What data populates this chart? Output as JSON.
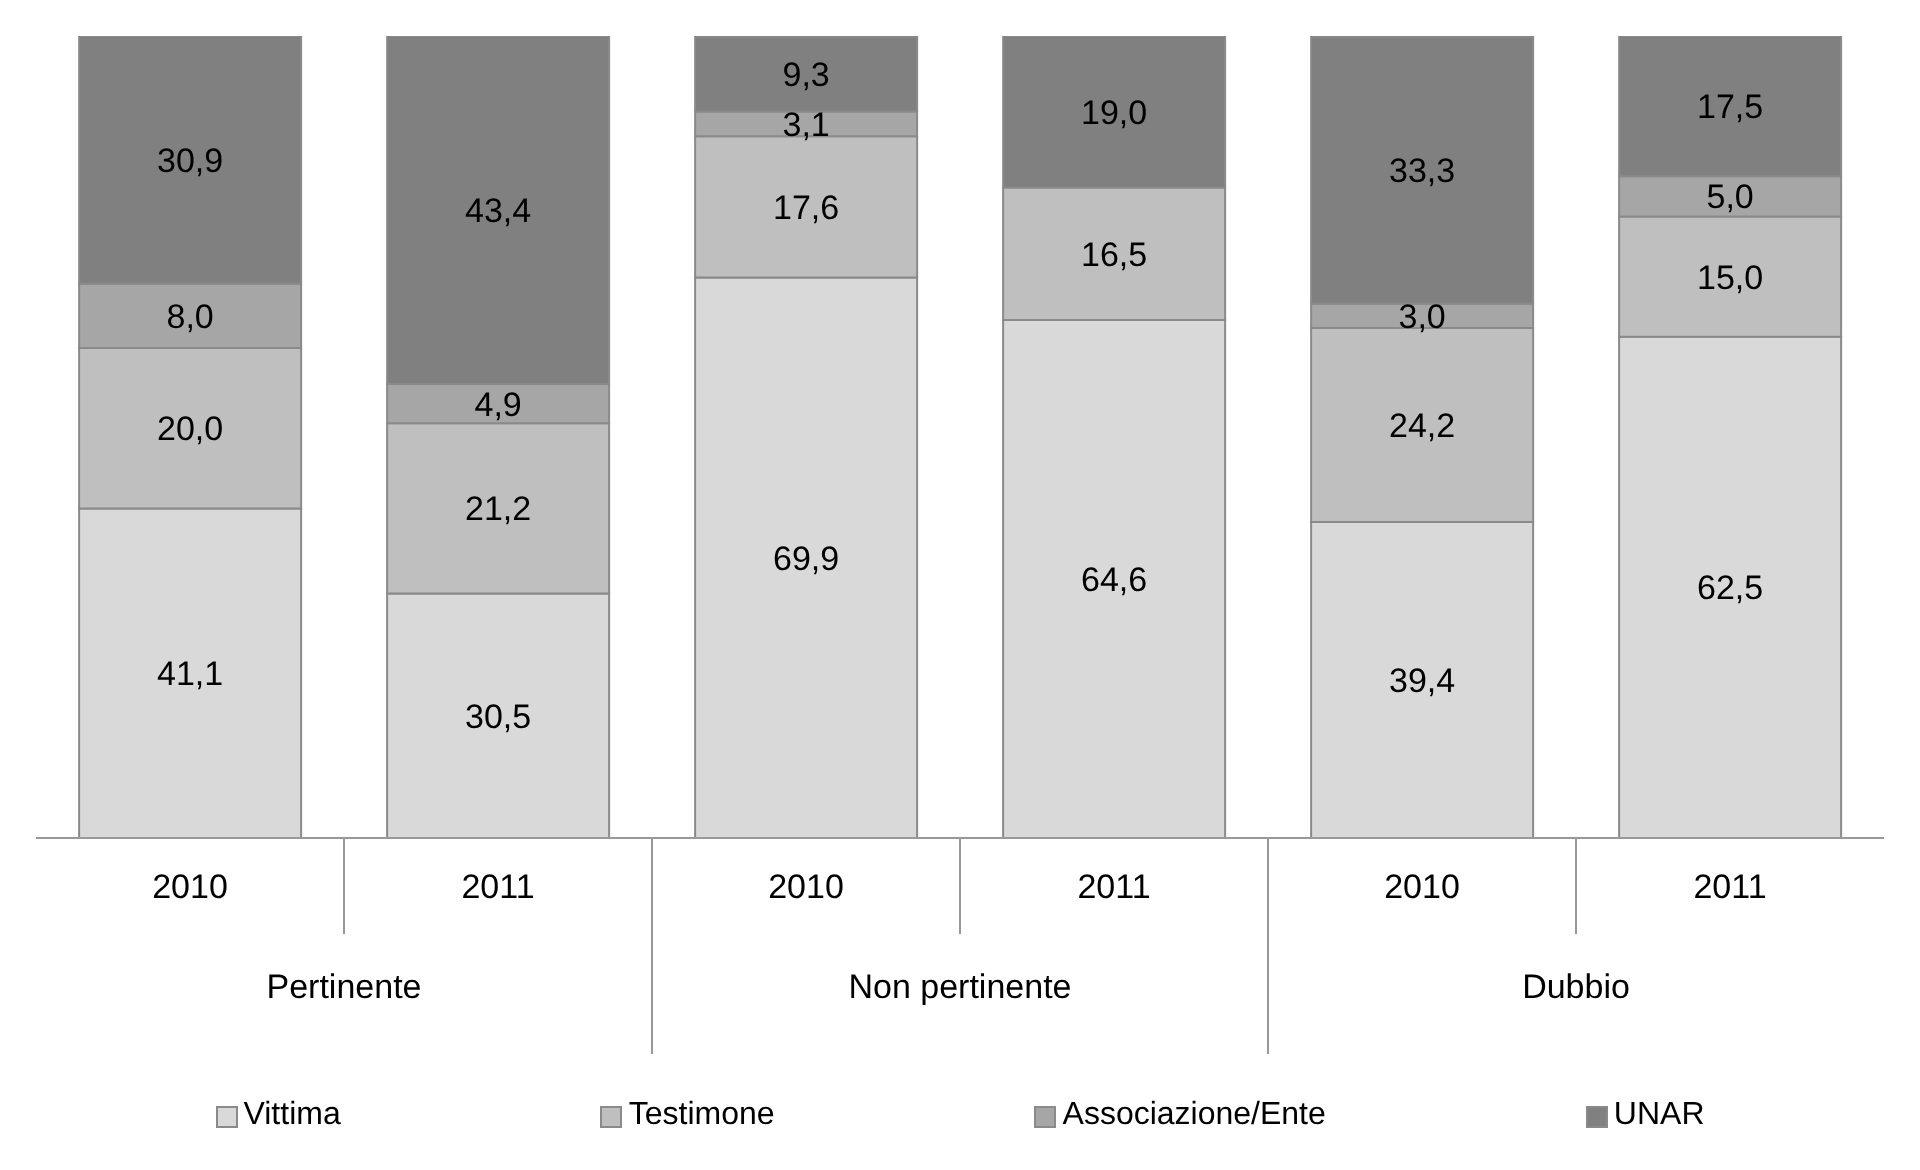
{
  "chart_data": {
    "type": "bar",
    "stacked": true,
    "categories": [
      "2010",
      "2011",
      "2010",
      "2011",
      "2010",
      "2011"
    ],
    "annotations": [
      "Pertinente",
      "Non pertinente",
      "Dubbio"
    ],
    "series": [
      {
        "name": "Vittima",
        "color": "#d9d9d9",
        "values": [
          41.1,
          30.5,
          69.9,
          64.6,
          39.4,
          62.5
        ],
        "value_labels": [
          "41,1",
          "30,5",
          "69,9",
          "64,6",
          "39,4",
          "62,5"
        ]
      },
      {
        "name": "Testimone",
        "color": "#bfbfbf",
        "values": [
          20.0,
          21.2,
          17.6,
          16.5,
          24.2,
          15.0
        ],
        "value_labels": [
          "20,0",
          "21,2",
          "17,6",
          "16,5",
          "24,2",
          "15,0"
        ]
      },
      {
        "name": "Associazione/Ente",
        "color": "#a6a6a6",
        "values": [
          8.0,
          4.9,
          3.1,
          0,
          3.0,
          5.0
        ],
        "value_labels": [
          "8,0",
          "4,9",
          "3,1",
          null,
          "3,0",
          "5,0"
        ]
      },
      {
        "name": "UNAR",
        "color": "#808080",
        "values": [
          30.9,
          43.4,
          9.3,
          19.0,
          33.3,
          17.5
        ],
        "value_labels": [
          "30,9",
          "43,4",
          "9,3",
          "19,0",
          "33,3",
          "17,5"
        ]
      }
    ],
    "ylim": [
      0,
      100
    ],
    "tick_labels": "x",
    "grid": false,
    "legend": "bottom"
  }
}
